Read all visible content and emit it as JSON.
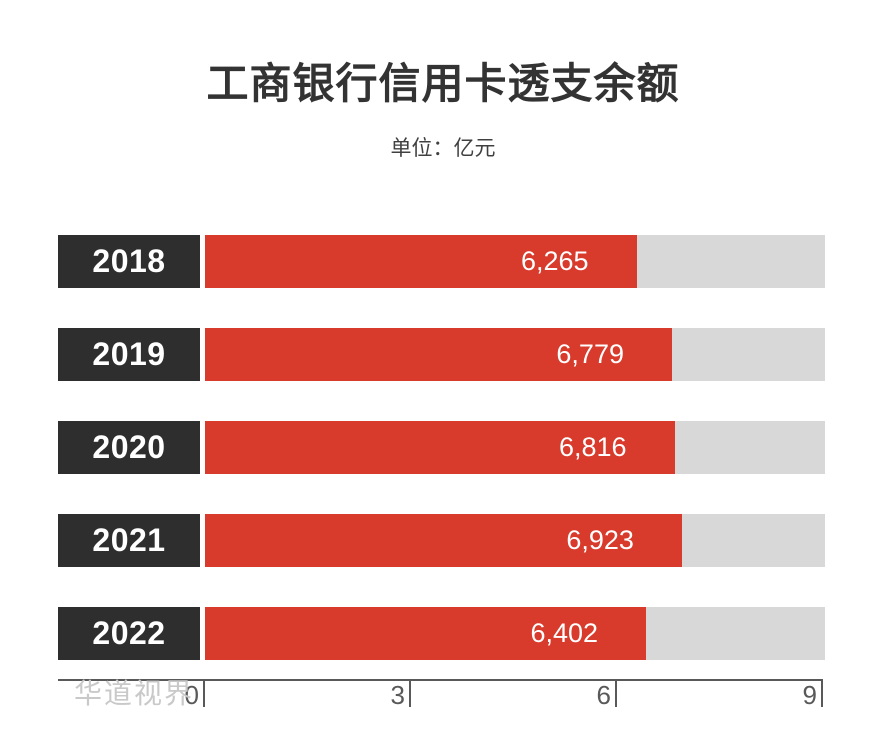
{
  "chart_data": {
    "type": "bar",
    "orientation": "horizontal",
    "title": "工商银行信用卡透支余额",
    "subtitle": "单位：亿元",
    "categories": [
      "2018",
      "2019",
      "2020",
      "2021",
      "2022"
    ],
    "values": [
      6265,
      6779,
      6816,
      6923,
      6402
    ],
    "value_labels": [
      "6,265",
      "6,779",
      "6,816",
      "6,923",
      "6,402"
    ],
    "xlim": [
      0,
      9000
    ],
    "tick_labels": [
      "0",
      "3",
      "6",
      "9"
    ],
    "tick_values": [
      0,
      3000,
      6000,
      9000
    ],
    "grid": false,
    "legend": null,
    "watermark": "华道视界",
    "colors": {
      "bar_fill": "#d83a2c",
      "bar_track": "#d8d8d8",
      "category_box": "#2e2e2e",
      "category_text": "#ffffff",
      "value_text": "#ffffff",
      "axis": "#595959",
      "title_text": "#333333",
      "subtitle_text": "#404040",
      "watermark_text": "#c9c9c9",
      "background": "#ffffff"
    }
  }
}
